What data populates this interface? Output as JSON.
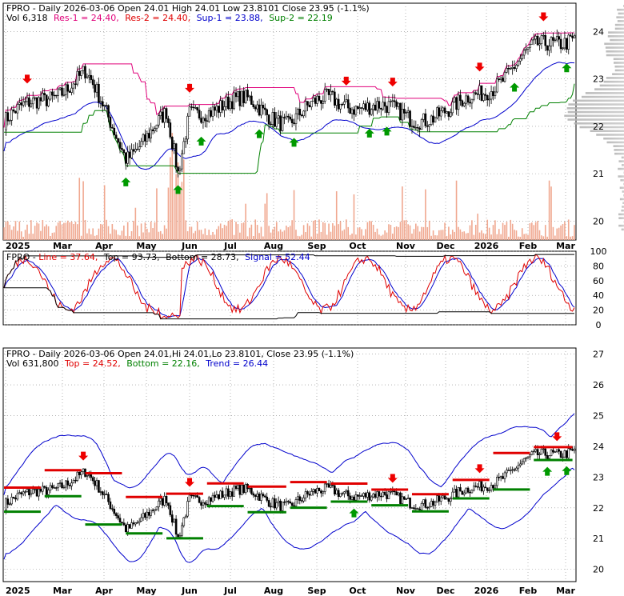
{
  "colors": {
    "res": "#e0007a",
    "res2": "#e00000",
    "sup": "#0000cc",
    "sup2": "#008000",
    "trend": "#0000cc",
    "down_arrow": "#ee0000",
    "up_arrow": "#009900",
    "volume": "#f0a890",
    "grid": "#888888",
    "candle": "#000000"
  },
  "months": [
    "2025",
    "Mar",
    "Apr",
    "May",
    "Jun",
    "Jul",
    "Aug",
    "Sep",
    "Oct",
    "Nov",
    "Dec",
    "2026",
    "Feb",
    "Mar"
  ],
  "panel1": {
    "title": "FPRO - Daily 2026-03-06 Open 24.01  High 24.01  Low 23.8101  Close 23.95 (-1.1%)",
    "vol_label": "Vol 6,318",
    "res1_label": "Res-1 = 24.40,",
    "res2_label": "Res-2 = 24.40,",
    "sup1_label": "Sup-1 = 23.88,",
    "sup2_label": "Sup-2 = 22.19",
    "y_ticks": [
      "24",
      "23",
      "22",
      "21",
      "20"
    ]
  },
  "panel2": {
    "prefix": "FPRO - ",
    "line_label": "Line = 37.64,",
    "top_label": "Top = 93.73,",
    "bottom_label": "Bottom = 28.73,",
    "signal_label": "Signal = 52.44",
    "y_ticks": [
      "100",
      "80",
      "60",
      "40",
      "20",
      "0"
    ]
  },
  "panel3": {
    "title": "FPRO - Daily 2026-03-06 Open 24.01,Hi 24.01,Lo 23.8101, Close 23.95 (-1.1%)",
    "vol_label": "Vol 631,800",
    "top_label": "Top = 24.52,",
    "bottom_label": "Bottom = 22.16,",
    "trend_label": "Trend = 26.44",
    "y_ticks": [
      "27",
      "26",
      "25",
      "24",
      "23",
      "22",
      "21",
      "20"
    ]
  },
  "chart_data": {
    "type": "line",
    "symbol": "FPRO",
    "last_bar": {
      "date": "2026-03-06",
      "open": 24.01,
      "high": 24.01,
      "low": 23.8101,
      "close": 23.95,
      "change_pct": -1.1
    },
    "x": [
      "2025-01",
      "2025-02",
      "2025-03",
      "2025-04",
      "2025-05",
      "2025-06",
      "2025-07",
      "2025-08",
      "2025-09",
      "2025-10",
      "2025-11",
      "2025-12",
      "2026-01",
      "2026-02",
      "2026-03"
    ],
    "series": [
      {
        "name": "Close",
        "values": [
          22.1,
          22.6,
          23.1,
          21.4,
          22.2,
          22.4,
          22.5,
          22.1,
          22.6,
          22.4,
          22.2,
          22.3,
          22.9,
          23.6,
          23.95
        ]
      }
    ],
    "levels": {
      "res1": 24.4,
      "res2": 24.4,
      "sup1": 23.88,
      "sup2": 22.19,
      "top": 24.52,
      "bottom": 22.16,
      "trend": 26.44
    },
    "oscillator": {
      "line": 37.64,
      "top": 93.73,
      "bottom": 28.73,
      "signal": 52.44
    },
    "ylim_price": [
      19.6,
      24.6
    ],
    "ylim_oscillator": [
      0,
      100
    ],
    "ylim_trend": [
      19.6,
      27.2
    ]
  }
}
